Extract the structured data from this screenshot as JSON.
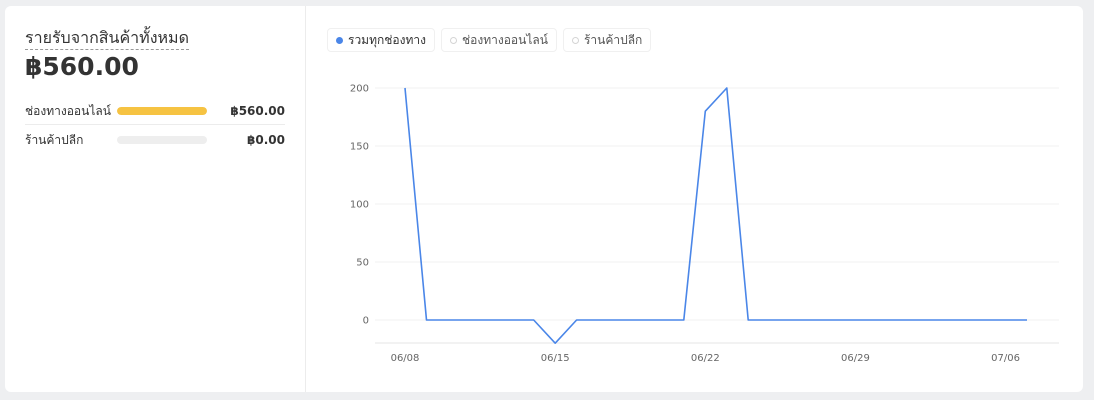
{
  "summary": {
    "title": "รายรับจากสินค้าทั้งหมด",
    "total": "฿560.00",
    "channels": [
      {
        "name": "ช่องทางออนไลน์",
        "value": "฿560.00",
        "fill_fraction": 1.0,
        "color": "#f6c342"
      },
      {
        "name": "ร้านค้าปลีก",
        "value": "฿0.00",
        "fill_fraction": 0.0,
        "color": "#eeeeee"
      }
    ]
  },
  "legend": [
    {
      "label": "รวมทุกช่องทาง",
      "active": true,
      "color": "#4a86e8"
    },
    {
      "label": "ช่องทางออนไลน์",
      "active": false
    },
    {
      "label": "ร้านค้าปลีก",
      "active": false
    }
  ],
  "chart_data": {
    "type": "line",
    "x": [
      "06/08",
      "06/09",
      "06/10",
      "06/11",
      "06/12",
      "06/13",
      "06/14",
      "06/15",
      "06/16",
      "06/17",
      "06/18",
      "06/19",
      "06/20",
      "06/21",
      "06/22",
      "06/23",
      "06/24",
      "06/25",
      "06/26",
      "06/27",
      "06/28",
      "06/29",
      "06/30",
      "07/01",
      "07/02",
      "07/03",
      "07/04",
      "07/05",
      "07/06",
      "07/07"
    ],
    "series": [
      {
        "values": [
          200,
          0,
          0,
          0,
          0,
          0,
          0,
          -20,
          0,
          0,
          0,
          0,
          0,
          0,
          180,
          200,
          0,
          0,
          0,
          0,
          0,
          0,
          0,
          0,
          0,
          0,
          0,
          0,
          0,
          0
        ],
        "color": "#4a86e8"
      }
    ],
    "x_tick_labels": [
      "06/08",
      "06/15",
      "06/22",
      "06/29",
      "07/06"
    ],
    "y_ticks": [
      0,
      50,
      100,
      150,
      200
    ],
    "ylim": [
      -20,
      200
    ],
    "grid": true,
    "title": "",
    "xlabel": "",
    "ylabel": ""
  }
}
